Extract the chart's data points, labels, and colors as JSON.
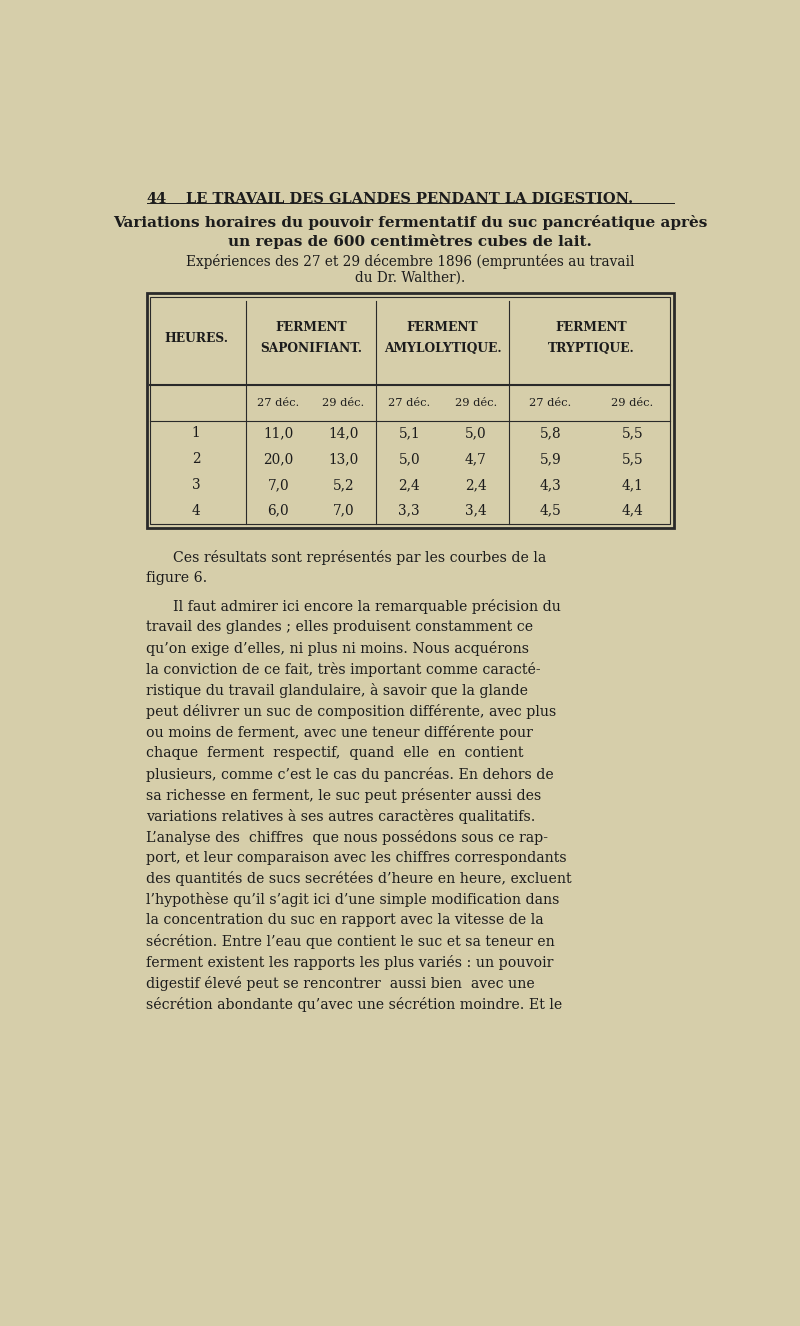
{
  "background_color": "#d6ceaa",
  "page_number": "44",
  "page_header": "LE TRAVAIL DES GLANDES PENDANT LA DIGESTION.",
  "title_bold": "Variations horaires du pouvoir fermentatif du suc pancréatique après",
  "title_bold2": "un repas de 600 centimètres cubes de lait.",
  "subtitle": "Expériences des 27 et 29 décembre 1896 (empruntées au travail",
  "subtitle2_plain": "du Dr. ",
  "subtitle2_italic": "Walther",
  "subtitle2_end": ").",
  "col_header_1": "HEURES.",
  "col_header_2a": "FERMENT",
  "col_header_2b": "SAPONIFIANT.",
  "col_header_3a": "FERMENT",
  "col_header_3b": "AMYLOLYTIQUE.",
  "col_header_4a": "FERMENT",
  "col_header_4b": "TRYPTIQUE.",
  "subheader_27": "27 déc.",
  "subheader_29": "29 déc.",
  "rows": [
    {
      "heure": "1",
      "sap_27": "11,0",
      "sap_29": "14,0",
      "amy_27": "5,1",
      "amy_29": "5,0",
      "tryp_27": "5,8",
      "tryp_29": "5,5"
    },
    {
      "heure": "2",
      "sap_27": "20,0",
      "sap_29": "13,0",
      "amy_27": "5,0",
      "amy_29": "4,7",
      "tryp_27": "5,9",
      "tryp_29": "5,5"
    },
    {
      "heure": "3",
      "sap_27": "7,0",
      "sap_29": "5,2",
      "amy_27": "2,4",
      "amy_29": "2,4",
      "tryp_27": "4,3",
      "tryp_29": "4,1"
    },
    {
      "heure": "4",
      "sap_27": "6,0",
      "sap_29": "7,0",
      "amy_27": "3,3",
      "amy_29": "3,4",
      "tryp_27": "4,5",
      "tryp_29": "4,4"
    }
  ],
  "para1_line1": "Ces résultats sont représentés par les courbes de la",
  "para1_line2": "figure 6.",
  "para2_lines": [
    "Il faut admirer ici encore la remarquable précision du",
    "travail des glandes ; elles produisent constamment ce",
    "qu’on exige d’elles, ni plus ni moins. Nous acquérons",
    "la conviction de ce fait, très important comme caracté-",
    "ristique du travail glandulaire, à savoir que la glande",
    "peut délivrer un suc de composition différente, avec plus",
    "ou moins de ferment, avec une teneur différente pour",
    "chaque  ferment  respectif,  quand  elle  en  contient",
    "plusieurs, comme c’est le cas du pancréas. En dehors de",
    "sa richesse en ferment, le suc peut présenter aussi des",
    "variations relatives à ses autres caractères qualitatifs.",
    "L’analyse des  chiffres  que nous possédons sous ce rap-",
    "port, et leur comparaison avec les chiffres correspondants",
    "des quantités de sucs secrétées d’heure en heure, excluent",
    "l’hypothèse qu’il s’agit ici d’une simple modification dans",
    "la concentration du suc en rapport avec la vitesse de la",
    "sécrétion. Entre l’eau que contient le suc et sa teneur en",
    "ferment existent les rapports les plus variés : un pouvoir",
    "digestif élevé peut se rencontrer  aussi bien  avec une",
    "sécrétion abondante qu’avec une sécrétion moindre. Et le"
  ],
  "text_color": "#1c1c1c",
  "table_border_color": "#2a2a2a",
  "lm": 0.075,
  "rm": 0.925,
  "fs_pagenum": 10.5,
  "fs_title": 11.0,
  "fs_subtitle": 9.8,
  "fs_col_header": 8.8,
  "fs_subheader": 8.2,
  "fs_data": 9.8,
  "fs_body": 10.2
}
